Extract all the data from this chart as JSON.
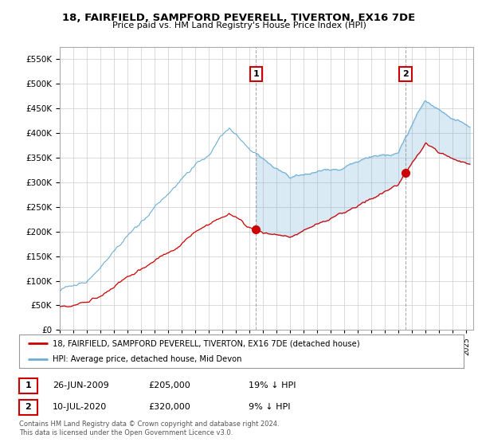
{
  "title": "18, FAIRFIELD, SAMPFORD PEVERELL, TIVERTON, EX16 7DE",
  "subtitle": "Price paid vs. HM Land Registry's House Price Index (HPI)",
  "ylim": [
    0,
    575000
  ],
  "yticks": [
    0,
    50000,
    100000,
    150000,
    200000,
    250000,
    300000,
    350000,
    400000,
    450000,
    500000,
    550000
  ],
  "xlim_start": 1995.0,
  "xlim_end": 2025.5,
  "sale1_x": 2009.48,
  "sale1_y": 205000,
  "sale1_label": "1",
  "sale1_date": "26-JUN-2009",
  "sale1_price": "£205,000",
  "sale1_note": "19% ↓ HPI",
  "sale2_x": 2020.52,
  "sale2_y": 320000,
  "sale2_label": "2",
  "sale2_date": "10-JUL-2020",
  "sale2_price": "£320,000",
  "sale2_note": "9% ↓ HPI",
  "hpi_color": "#6baed6",
  "sale_color": "#cc0000",
  "fill_color": "#ddeeff",
  "legend_label1": "18, FAIRFIELD, SAMPFORD PEVERELL, TIVERTON, EX16 7DE (detached house)",
  "legend_label2": "HPI: Average price, detached house, Mid Devon",
  "footnote": "Contains HM Land Registry data © Crown copyright and database right 2024.\nThis data is licensed under the Open Government Licence v3.0.",
  "background_color": "#ffffff",
  "grid_color": "#cccccc"
}
